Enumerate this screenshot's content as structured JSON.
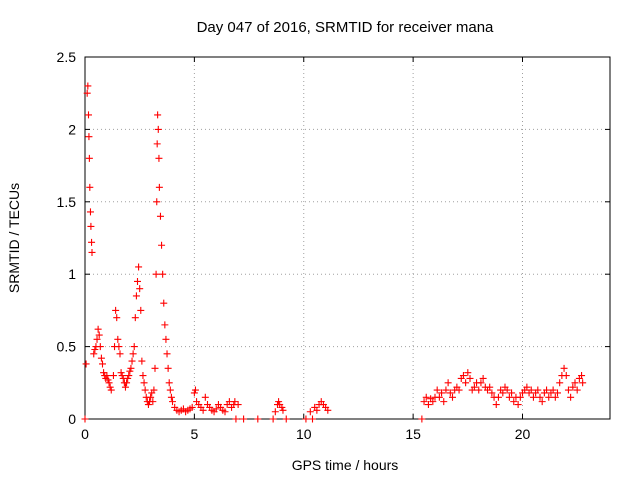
{
  "chart_data": {
    "type": "scatter",
    "title": "Day 047 of 2016, SRMTID for receiver mana",
    "xlabel": "GPS time / hours",
    "ylabel": "SRMTID / TECUs",
    "xlim": [
      0,
      24
    ],
    "ylim": [
      0,
      2.5
    ],
    "xticks": [
      0,
      5,
      10,
      15,
      20
    ],
    "yticks": [
      0,
      0.5,
      1,
      1.5,
      2,
      2.5
    ],
    "xtick_labels": [
      "0",
      "5",
      "10",
      "15",
      "20"
    ],
    "ytick_labels": [
      "0",
      "0.5",
      "1",
      "1.5",
      "2",
      "2.5"
    ],
    "grid": true,
    "legend": "none",
    "marker": "plus",
    "color": "#ff0000",
    "points": [
      [
        0.05,
        0.38
      ],
      [
        0.1,
        2.25
      ],
      [
        0.13,
        2.3
      ],
      [
        0.16,
        2.1
      ],
      [
        0.18,
        1.95
      ],
      [
        0.2,
        1.8
      ],
      [
        0.22,
        1.6
      ],
      [
        0.25,
        1.43
      ],
      [
        0.27,
        1.33
      ],
      [
        0.3,
        1.22
      ],
      [
        0.32,
        1.15
      ],
      [
        0.4,
        0.45
      ],
      [
        0.45,
        0.48
      ],
      [
        0.5,
        0.5
      ],
      [
        0.55,
        0.55
      ],
      [
        0.6,
        0.62
      ],
      [
        0.65,
        0.58
      ],
      [
        0.7,
        0.5
      ],
      [
        0.75,
        0.42
      ],
      [
        0.8,
        0.38
      ],
      [
        0.85,
        0.32
      ],
      [
        0.9,
        0.3
      ],
      [
        0.95,
        0.28
      ],
      [
        1.0,
        0.3
      ],
      [
        1.05,
        0.27
      ],
      [
        1.1,
        0.25
      ],
      [
        1.15,
        0.22
      ],
      [
        1.2,
        0.2
      ],
      [
        1.3,
        0.3
      ],
      [
        1.35,
        0.5
      ],
      [
        1.4,
        0.75
      ],
      [
        1.45,
        0.7
      ],
      [
        1.5,
        0.55
      ],
      [
        1.55,
        0.5
      ],
      [
        1.6,
        0.45
      ],
      [
        1.65,
        0.32
      ],
      [
        1.7,
        0.3
      ],
      [
        1.75,
        0.28
      ],
      [
        1.8,
        0.25
      ],
      [
        1.85,
        0.22
      ],
      [
        1.9,
        0.25
      ],
      [
        1.95,
        0.28
      ],
      [
        2.0,
        0.3
      ],
      [
        2.05,
        0.33
      ],
      [
        2.1,
        0.35
      ],
      [
        2.15,
        0.4
      ],
      [
        2.2,
        0.45
      ],
      [
        2.25,
        0.5
      ],
      [
        2.3,
        0.7
      ],
      [
        2.35,
        0.85
      ],
      [
        2.4,
        0.95
      ],
      [
        2.45,
        1.05
      ],
      [
        2.5,
        0.9
      ],
      [
        2.55,
        0.75
      ],
      [
        2.6,
        0.4
      ],
      [
        2.65,
        0.3
      ],
      [
        2.7,
        0.25
      ],
      [
        2.75,
        0.2
      ],
      [
        2.8,
        0.15
      ],
      [
        2.85,
        0.12
      ],
      [
        2.9,
        0.1
      ],
      [
        2.95,
        0.12
      ],
      [
        3.0,
        0.15
      ],
      [
        3.05,
        0.18
      ],
      [
        3.1,
        0.12
      ],
      [
        3.15,
        0.2
      ],
      [
        3.2,
        0.35
      ],
      [
        3.25,
        1.0
      ],
      [
        3.28,
        1.5
      ],
      [
        3.3,
        1.9
      ],
      [
        3.32,
        2.1
      ],
      [
        3.35,
        2.0
      ],
      [
        3.38,
        1.8
      ],
      [
        3.4,
        1.6
      ],
      [
        3.45,
        1.4
      ],
      [
        3.5,
        1.2
      ],
      [
        3.55,
        1.0
      ],
      [
        3.6,
        0.8
      ],
      [
        3.65,
        0.65
      ],
      [
        3.7,
        0.55
      ],
      [
        3.75,
        0.45
      ],
      [
        3.8,
        0.35
      ],
      [
        3.85,
        0.25
      ],
      [
        3.9,
        0.2
      ],
      [
        3.95,
        0.15
      ],
      [
        4.0,
        0.12
      ],
      [
        4.1,
        0.08
      ],
      [
        4.2,
        0.06
      ],
      [
        4.3,
        0.05
      ],
      [
        4.4,
        0.06
      ],
      [
        4.5,
        0.07
      ],
      [
        4.6,
        0.05
      ],
      [
        4.7,
        0.06
      ],
      [
        4.8,
        0.07
      ],
      [
        4.9,
        0.08
      ],
      [
        5.0,
        0.18
      ],
      [
        5.05,
        0.2
      ],
      [
        5.1,
        0.12
      ],
      [
        5.2,
        0.1
      ],
      [
        5.3,
        0.08
      ],
      [
        5.4,
        0.06
      ],
      [
        5.5,
        0.15
      ],
      [
        5.6,
        0.1
      ],
      [
        5.7,
        0.08
      ],
      [
        5.8,
        0.06
      ],
      [
        5.9,
        0.05
      ],
      [
        6.0,
        0.07
      ],
      [
        6.1,
        0.1
      ],
      [
        6.2,
        0.08
      ],
      [
        6.3,
        0.06
      ],
      [
        6.4,
        0.05
      ],
      [
        6.5,
        0.1
      ],
      [
        6.6,
        0.12
      ],
      [
        6.7,
        0.08
      ],
      [
        6.8,
        0.1
      ],
      [
        6.85,
        0.12
      ],
      [
        7.0,
        0.1
      ],
      [
        0.0,
        0.0
      ],
      [
        6.9,
        0.0
      ],
      [
        7.25,
        0.0
      ],
      [
        7.9,
        0.0
      ],
      [
        8.6,
        0.0
      ],
      [
        9.2,
        0.0
      ],
      [
        10.1,
        0.0
      ],
      [
        10.4,
        0.0
      ],
      [
        15.4,
        0.0
      ],
      [
        8.7,
        0.05
      ],
      [
        8.8,
        0.1
      ],
      [
        8.85,
        0.12
      ],
      [
        8.9,
        0.1
      ],
      [
        9.0,
        0.08
      ],
      [
        9.05,
        0.06
      ],
      [
        10.3,
        0.05
      ],
      [
        10.5,
        0.08
      ],
      [
        10.6,
        0.06
      ],
      [
        10.7,
        0.1
      ],
      [
        10.8,
        0.12
      ],
      [
        10.9,
        0.1
      ],
      [
        11.0,
        0.08
      ],
      [
        11.1,
        0.06
      ],
      [
        15.5,
        0.12
      ],
      [
        15.6,
        0.15
      ],
      [
        15.7,
        0.1
      ],
      [
        15.8,
        0.14
      ],
      [
        15.9,
        0.12
      ],
      [
        16.0,
        0.15
      ],
      [
        16.1,
        0.2
      ],
      [
        16.2,
        0.15
      ],
      [
        16.3,
        0.18
      ],
      [
        16.4,
        0.12
      ],
      [
        16.5,
        0.2
      ],
      [
        16.6,
        0.25
      ],
      [
        16.7,
        0.18
      ],
      [
        16.8,
        0.15
      ],
      [
        16.9,
        0.2
      ],
      [
        17.0,
        0.22
      ],
      [
        17.1,
        0.2
      ],
      [
        17.2,
        0.28
      ],
      [
        17.3,
        0.3
      ],
      [
        17.4,
        0.25
      ],
      [
        17.5,
        0.32
      ],
      [
        17.6,
        0.28
      ],
      [
        17.7,
        0.2
      ],
      [
        17.8,
        0.22
      ],
      [
        17.9,
        0.25
      ],
      [
        18.0,
        0.2
      ],
      [
        18.1,
        0.25
      ],
      [
        18.2,
        0.28
      ],
      [
        18.3,
        0.22
      ],
      [
        18.4,
        0.2
      ],
      [
        18.5,
        0.22
      ],
      [
        18.6,
        0.18
      ],
      [
        18.7,
        0.15
      ],
      [
        18.8,
        0.1
      ],
      [
        18.9,
        0.15
      ],
      [
        19.0,
        0.2
      ],
      [
        19.1,
        0.18
      ],
      [
        19.2,
        0.22
      ],
      [
        19.3,
        0.2
      ],
      [
        19.4,
        0.15
      ],
      [
        19.5,
        0.18
      ],
      [
        19.6,
        0.12
      ],
      [
        19.7,
        0.15
      ],
      [
        19.8,
        0.1
      ],
      [
        19.9,
        0.15
      ],
      [
        20.0,
        0.18
      ],
      [
        20.1,
        0.2
      ],
      [
        20.2,
        0.22
      ],
      [
        20.3,
        0.18
      ],
      [
        20.4,
        0.2
      ],
      [
        20.5,
        0.15
      ],
      [
        20.6,
        0.18
      ],
      [
        20.7,
        0.2
      ],
      [
        20.8,
        0.15
      ],
      [
        20.9,
        0.12
      ],
      [
        21.0,
        0.18
      ],
      [
        21.1,
        0.2
      ],
      [
        21.2,
        0.15
      ],
      [
        21.3,
        0.18
      ],
      [
        21.4,
        0.2
      ],
      [
        21.5,
        0.15
      ],
      [
        21.6,
        0.18
      ],
      [
        21.7,
        0.25
      ],
      [
        21.8,
        0.3
      ],
      [
        21.9,
        0.35
      ],
      [
        22.0,
        0.3
      ],
      [
        22.1,
        0.2
      ],
      [
        22.2,
        0.15
      ],
      [
        22.3,
        0.22
      ],
      [
        22.4,
        0.25
      ],
      [
        22.5,
        0.2
      ],
      [
        22.6,
        0.28
      ],
      [
        22.7,
        0.3
      ],
      [
        22.75,
        0.25
      ]
    ]
  }
}
